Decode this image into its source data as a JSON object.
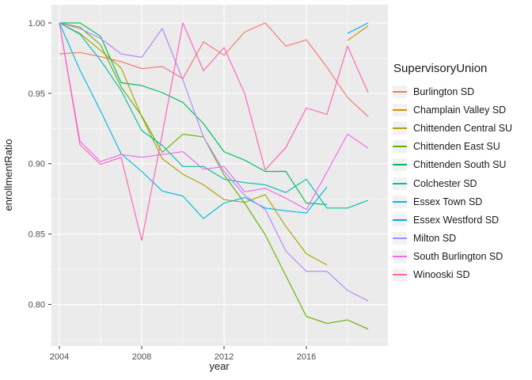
{
  "chart_data": {
    "type": "line",
    "xlabel": "year",
    "ylabel": "enrollmentRatio",
    "legend_title": "SupervisoryUnion",
    "x_ticks": [
      {
        "value": 2004,
        "label": "2004"
      },
      {
        "value": 2008,
        "label": "2008"
      },
      {
        "value": 2012,
        "label": "2012"
      },
      {
        "value": 2016,
        "label": "2016"
      }
    ],
    "y_ticks": [
      {
        "value": 1.0,
        "label": "1.00"
      },
      {
        "value": 0.95,
        "label": "0.95"
      },
      {
        "value": 0.9,
        "label": "0.90"
      },
      {
        "value": 0.85,
        "label": "0.85"
      },
      {
        "value": 0.8,
        "label": "0.80"
      }
    ],
    "x_minor": [
      2006,
      2010,
      2014,
      2018
    ],
    "y_minor": [
      0.975,
      0.925,
      0.875,
      0.825,
      0.775
    ],
    "xlim": [
      2003.615,
      2019.962
    ],
    "ylim": [
      0.7705,
      1.0129
    ],
    "grid": true,
    "legend_position": "right",
    "panel_bg": "#EBEBEB",
    "grid_color": "#FFFFFF",
    "tick_color": "#333333",
    "series": [
      {
        "name": "Burlington SD",
        "color": "#F8766D",
        "points": [
          [
            2004,
            0.978
          ],
          [
            2005,
            0.979
          ],
          [
            2006,
            0.976
          ],
          [
            2007,
            0.9725
          ],
          [
            2008,
            0.9675
          ],
          [
            2009,
            0.969
          ],
          [
            2010,
            0.9605
          ],
          [
            2011,
            0.9865
          ],
          [
            2012,
            0.977
          ],
          [
            2013,
            0.9935
          ],
          [
            2014,
            1.0
          ],
          [
            2015,
            0.9835
          ],
          [
            2016,
            0.988
          ],
          [
            2017,
            0.9685
          ],
          [
            2018,
            0.947
          ],
          [
            2019,
            0.9335
          ]
        ]
      },
      {
        "name": "Champlain Valley SD",
        "color": "#DB8E00",
        "points": [
          [
            2018,
            0.9875
          ],
          [
            2019,
            0.998
          ]
        ]
      },
      {
        "name": "Chittenden Central SU",
        "color": "#AEA200",
        "points": [
          [
            2004,
            1.0
          ],
          [
            2005,
            0.9925
          ],
          [
            2006,
            0.9805
          ],
          [
            2007,
            0.968
          ],
          [
            2008,
            0.9335
          ],
          [
            2009,
            0.9035
          ],
          [
            2010,
            0.8925
          ],
          [
            2011,
            0.885
          ],
          [
            2012,
            0.8745
          ],
          [
            2013,
            0.8725
          ],
          [
            2014,
            0.878
          ],
          [
            2015,
            0.8555
          ],
          [
            2016,
            0.836
          ],
          [
            2017,
            0.828
          ]
        ]
      },
      {
        "name": "Chittenden East SU",
        "color": "#64B200",
        "points": [
          [
            2004,
            1.0
          ],
          [
            2005,
            0.997
          ],
          [
            2006,
            0.9845
          ],
          [
            2007,
            0.9545
          ],
          [
            2008,
            0.934
          ],
          [
            2009,
            0.908
          ],
          [
            2010,
            0.921
          ],
          [
            2011,
            0.919
          ],
          [
            2012,
            0.892
          ],
          [
            2013,
            0.872
          ],
          [
            2014,
            0.8495
          ],
          [
            2015,
            0.8205
          ],
          [
            2016,
            0.7915
          ],
          [
            2017,
            0.7865
          ],
          [
            2018,
            0.789
          ],
          [
            2019,
            0.7825
          ]
        ]
      },
      {
        "name": "Chittenden South SU",
        "color": "#00BD5C",
        "points": [
          [
            2004,
            1.0
          ],
          [
            2005,
            1.0
          ],
          [
            2006,
            0.9905
          ],
          [
            2007,
            0.9575
          ],
          [
            2008,
            0.9555
          ],
          [
            2009,
            0.9505
          ],
          [
            2010,
            0.9435
          ],
          [
            2011,
            0.9285
          ],
          [
            2012,
            0.9085
          ],
          [
            2013,
            0.9025
          ],
          [
            2014,
            0.8945
          ],
          [
            2015,
            0.8945
          ],
          [
            2016,
            0.872
          ],
          [
            2017,
            0.871
          ]
        ]
      },
      {
        "name": "Colchester SD",
        "color": "#00C1A7",
        "points": [
          [
            2004,
            1.0
          ],
          [
            2005,
            0.992
          ],
          [
            2006,
            0.9735
          ],
          [
            2007,
            0.952
          ],
          [
            2008,
            0.9235
          ],
          [
            2009,
            0.913
          ],
          [
            2010,
            0.898
          ],
          [
            2011,
            0.898
          ],
          [
            2012,
            0.889
          ],
          [
            2013,
            0.8865
          ],
          [
            2014,
            0.885
          ],
          [
            2015,
            0.8795
          ],
          [
            2016,
            0.889
          ],
          [
            2017,
            0.8685
          ],
          [
            2018,
            0.8685
          ],
          [
            2019,
            0.874
          ]
        ]
      },
      {
        "name": "Essex Town SD",
        "color": "#00BADE",
        "points": [
          [
            2004,
            1.0
          ],
          [
            2005,
            0.9665
          ],
          [
            2006,
            0.9375
          ],
          [
            2007,
            0.907
          ],
          [
            2008,
            0.8945
          ],
          [
            2009,
            0.8805
          ],
          [
            2010,
            0.877
          ],
          [
            2011,
            0.861
          ],
          [
            2012,
            0.872
          ],
          [
            2013,
            0.876
          ],
          [
            2014,
            0.8685
          ],
          [
            2015,
            0.8665
          ],
          [
            2016,
            0.865
          ],
          [
            2017,
            0.8835
          ]
        ]
      },
      {
        "name": "Essex Westford SD",
        "color": "#00A6FF",
        "points": [
          [
            2018,
            0.9925
          ],
          [
            2019,
            1.0
          ]
        ]
      },
      {
        "name": "Milton SD",
        "color": "#B385FF",
        "points": [
          [
            2004,
            1.0
          ],
          [
            2005,
            0.996
          ],
          [
            2006,
            0.989
          ],
          [
            2007,
            0.978
          ],
          [
            2008,
            0.9755
          ],
          [
            2009,
            0.996
          ],
          [
            2010,
            0.9595
          ],
          [
            2011,
            0.919
          ],
          [
            2012,
            0.8945
          ],
          [
            2013,
            0.8775
          ],
          [
            2014,
            0.8675
          ],
          [
            2015,
            0.838
          ],
          [
            2016,
            0.8235
          ],
          [
            2017,
            0.8235
          ],
          [
            2018,
            0.81
          ],
          [
            2019,
            0.8025
          ]
        ]
      },
      {
        "name": "South Burlington SD",
        "color": "#EF67EB",
        "points": [
          [
            2004,
            1.0
          ],
          [
            2005,
            0.916
          ],
          [
            2006,
            0.9015
          ],
          [
            2007,
            0.9065
          ],
          [
            2008,
            0.9045
          ],
          [
            2009,
            0.9065
          ],
          [
            2010,
            0.9085
          ],
          [
            2011,
            0.896
          ],
          [
            2012,
            0.898
          ],
          [
            2013,
            0.88
          ],
          [
            2014,
            0.8825
          ],
          [
            2015,
            0.8755
          ],
          [
            2016,
            0.8675
          ],
          [
            2017,
            0.894
          ],
          [
            2018,
            0.921
          ],
          [
            2019,
            0.911
          ]
        ]
      },
      {
        "name": "Winooski SD",
        "color": "#FF63B6",
        "points": [
          [
            2004,
            1.0
          ],
          [
            2005,
            0.9135
          ],
          [
            2006,
            0.8995
          ],
          [
            2007,
            0.9045
          ],
          [
            2008,
            0.8455
          ],
          [
            2009,
            0.921
          ],
          [
            2010,
            1.0
          ],
          [
            2011,
            0.966
          ],
          [
            2012,
            0.9825
          ],
          [
            2013,
            0.95
          ],
          [
            2014,
            0.8955
          ],
          [
            2015,
            0.9115
          ],
          [
            2016,
            0.9395
          ],
          [
            2017,
            0.935
          ],
          [
            2018,
            0.9835
          ],
          [
            2019,
            0.9505
          ]
        ]
      }
    ]
  }
}
